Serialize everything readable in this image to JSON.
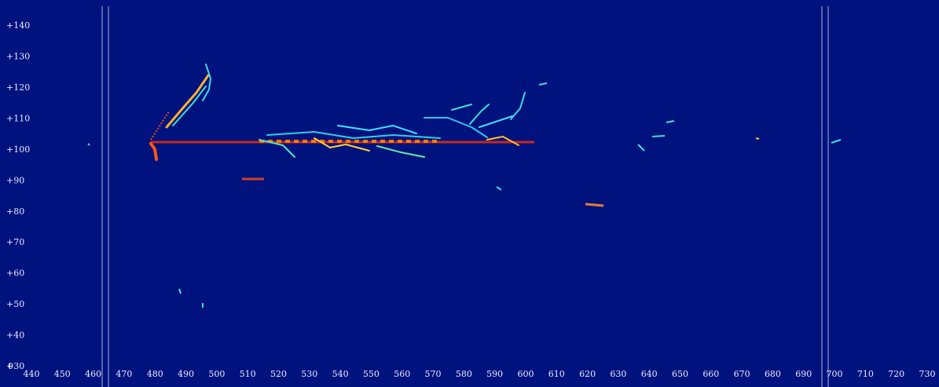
{
  "x_axis": {
    "origin_label": "0",
    "ticks": [
      "440",
      "450",
      "460",
      "470",
      "480",
      "490",
      "500",
      "510",
      "520",
      "530",
      "540",
      "550",
      "560",
      "570",
      "580",
      "590",
      "600",
      "610",
      "620",
      "630",
      "640",
      "650",
      "660",
      "670",
      "680",
      "690",
      "700",
      "710",
      "720",
      "730"
    ]
  },
  "y_axis": {
    "ticks": [
      "+30",
      "+40",
      "+50",
      "+60",
      "+70",
      "+80",
      "+90",
      "+100",
      "+110",
      "+120",
      "+130",
      "+140"
    ]
  }
}
